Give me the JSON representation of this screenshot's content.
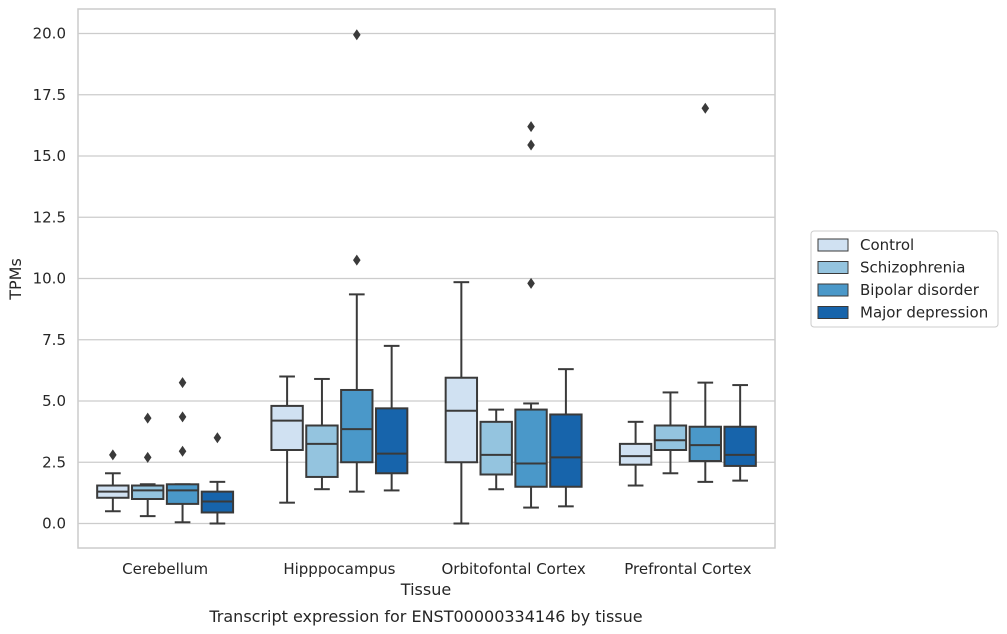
{
  "chart_data": {
    "type": "box",
    "title": "",
    "caption": "Transcript expression for ENST00000334146 by tissue",
    "xlabel": "Tissue",
    "ylabel": "TPMs",
    "ylim": [
      -1,
      21
    ],
    "yticks": [
      0,
      2.5,
      5,
      7.5,
      10,
      12.5,
      15,
      17.5,
      20
    ],
    "ytick_labels": [
      "0.0",
      "2.5",
      "5.0",
      "7.5",
      "10.0",
      "12.5",
      "15.0",
      "17.5",
      "20.0"
    ],
    "grid": "horizontal",
    "legend_position": "center-right-outside",
    "categories": [
      "Cerebellum",
      "Hipppocampus",
      "Orbitofontal Cortex",
      "Prefrontal Cortex"
    ],
    "series": [
      {
        "name": "Control",
        "color": "#d0e1f2",
        "boxes": [
          {
            "whislo": 0.5,
            "q1": 1.05,
            "med": 1.3,
            "q3": 1.55,
            "whishi": 2.05,
            "fliers": [
              2.8
            ]
          },
          {
            "whislo": 0.85,
            "q1": 3.0,
            "med": 4.2,
            "q3": 4.8,
            "whishi": 6.0,
            "fliers": []
          },
          {
            "whislo": 0.0,
            "q1": 2.5,
            "med": 4.6,
            "q3": 5.95,
            "whishi": 9.85,
            "fliers": []
          },
          {
            "whislo": 1.55,
            "q1": 2.4,
            "med": 2.75,
            "q3": 3.25,
            "whishi": 4.15,
            "fliers": []
          }
        ]
      },
      {
        "name": "Schizophrenia",
        "color": "#94c4df",
        "boxes": [
          {
            "whislo": 0.3,
            "q1": 1.0,
            "med": 1.35,
            "q3": 1.55,
            "whishi": 1.6,
            "fliers": [
              2.7,
              4.3
            ]
          },
          {
            "whislo": 1.4,
            "q1": 1.9,
            "med": 3.25,
            "q3": 4.0,
            "whishi": 5.9,
            "fliers": []
          },
          {
            "whislo": 1.4,
            "q1": 2.0,
            "med": 2.8,
            "q3": 4.15,
            "whishi": 4.65,
            "fliers": []
          },
          {
            "whislo": 2.05,
            "q1": 3.0,
            "med": 3.4,
            "q3": 4.0,
            "whishi": 5.35,
            "fliers": []
          }
        ]
      },
      {
        "name": "Bipolar disorder",
        "color": "#4a98c9",
        "boxes": [
          {
            "whislo": 0.05,
            "q1": 0.8,
            "med": 1.35,
            "q3": 1.6,
            "whishi": 1.6,
            "fliers": [
              2.95,
              4.35,
              5.75
            ]
          },
          {
            "whislo": 1.3,
            "q1": 2.5,
            "med": 3.85,
            "q3": 5.45,
            "whishi": 9.35,
            "fliers": [
              10.75,
              19.95
            ]
          },
          {
            "whislo": 0.65,
            "q1": 1.5,
            "med": 2.45,
            "q3": 4.65,
            "whishi": 4.9,
            "fliers": [
              9.8,
              15.45,
              16.2
            ]
          },
          {
            "whislo": 1.7,
            "q1": 2.55,
            "med": 3.2,
            "q3": 3.95,
            "whishi": 5.75,
            "fliers": [
              16.95
            ]
          }
        ]
      },
      {
        "name": "Major depression",
        "color": "#1764ab",
        "boxes": [
          {
            "whislo": 0.0,
            "q1": 0.45,
            "med": 0.9,
            "q3": 1.3,
            "whishi": 1.7,
            "fliers": [
              3.5
            ]
          },
          {
            "whislo": 1.35,
            "q1": 2.05,
            "med": 2.85,
            "q3": 4.7,
            "whishi": 7.25,
            "fliers": []
          },
          {
            "whislo": 0.7,
            "q1": 1.5,
            "med": 2.7,
            "q3": 4.45,
            "whishi": 6.3,
            "fliers": []
          },
          {
            "whislo": 1.75,
            "q1": 2.35,
            "med": 2.8,
            "q3": 3.95,
            "whishi": 5.65,
            "fliers": []
          }
        ]
      }
    ]
  }
}
